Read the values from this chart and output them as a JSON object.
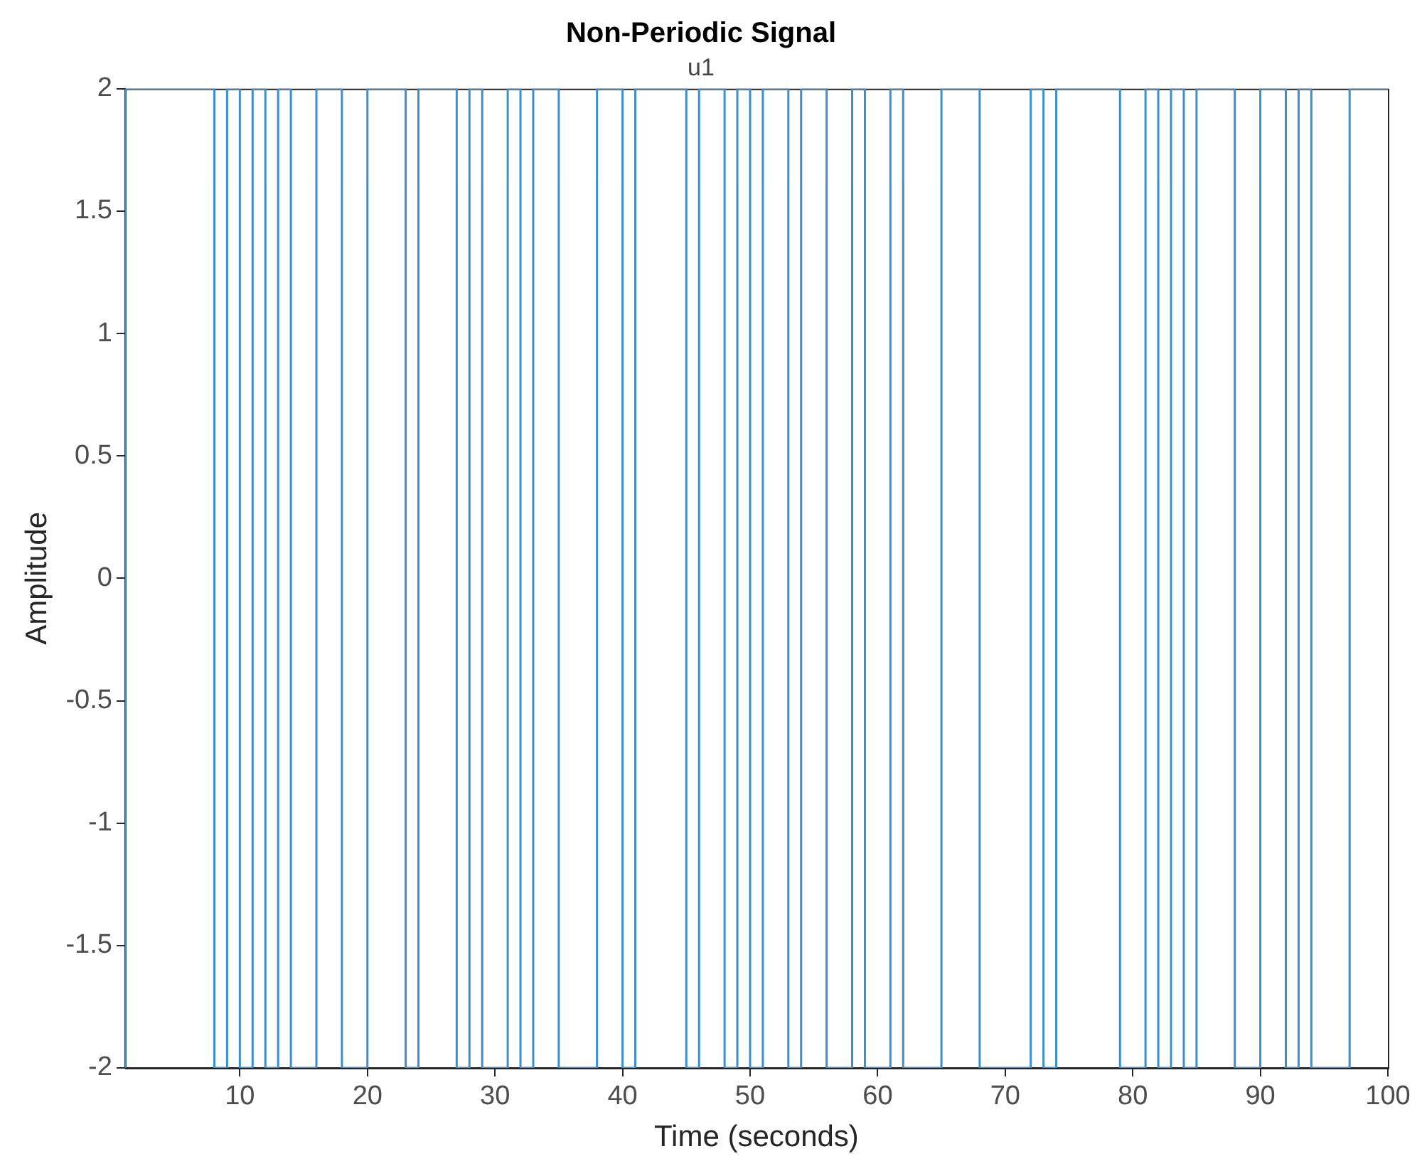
{
  "chart_data": {
    "type": "step",
    "title": "Non-Periodic Signal",
    "subtitle": "u1",
    "xlabel": "Time (seconds)",
    "ylabel": "Amplitude",
    "x": [
      1,
      8,
      9,
      10,
      11,
      12,
      13,
      14,
      16,
      18,
      20,
      23,
      24,
      27,
      28,
      29,
      31,
      32,
      33,
      35,
      38,
      40,
      41,
      45,
      46,
      48,
      49,
      50,
      51,
      53,
      54,
      56,
      58,
      59,
      61,
      62,
      65,
      68,
      72,
      73,
      74,
      79,
      81,
      82,
      83,
      84,
      85,
      88,
      90,
      92,
      93,
      94,
      97,
      98,
      100
    ],
    "series": [
      {
        "color": "#3b8fce",
        "values": [
          -2,
          2,
          -2,
          2,
          -2,
          2,
          -2,
          2,
          -2,
          2,
          -2,
          2,
          -2,
          2,
          -2,
          2,
          -2,
          2,
          -2,
          2,
          -2,
          2,
          -2,
          2,
          -2,
          2,
          -2,
          2,
          -2,
          2,
          -2,
          2,
          -2,
          2,
          -2,
          2,
          -2,
          2,
          -2,
          2,
          -2,
          2,
          -2,
          2,
          -2,
          2,
          -2,
          2,
          -2,
          2,
          -2,
          2,
          -2,
          2,
          2
        ]
      }
    ],
    "xlim": [
      1,
      100
    ],
    "xticks": [
      10,
      20,
      30,
      40,
      50,
      60,
      70,
      80,
      90,
      100
    ],
    "ylim": [
      -2,
      2
    ],
    "yticks": [
      -2,
      -1.5,
      -1,
      -0.5,
      0,
      0.5,
      1,
      1.5,
      2
    ],
    "grid": false,
    "legend": false
  }
}
